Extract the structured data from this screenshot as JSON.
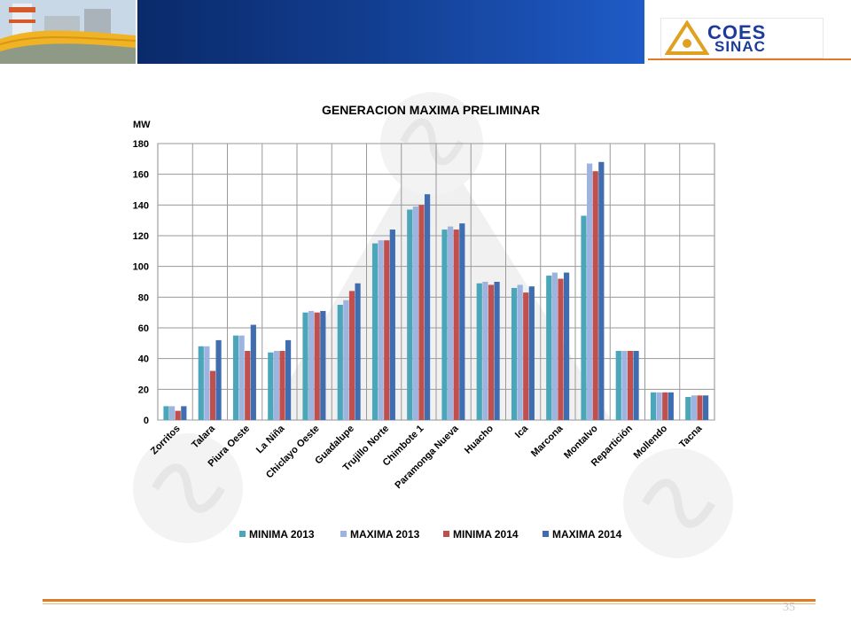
{
  "header": {
    "logo_line1": "COES",
    "logo_line2": "SINAC"
  },
  "colors": {
    "header_blue": "#123d8f",
    "accent_orange": "#e07b25",
    "series": [
      "#4aa6b8",
      "#9db4e0",
      "#c0504d",
      "#3f6db0"
    ]
  },
  "chart_data": {
    "type": "bar",
    "title": "GENERACION MAXIMA PRELIMINAR",
    "ylabel": "MW",
    "xlabel": "",
    "ylim": [
      0,
      180
    ],
    "yticks": [
      0,
      20,
      40,
      60,
      80,
      100,
      120,
      140,
      160,
      180
    ],
    "grid": true,
    "legend_position": "bottom",
    "categories": [
      "Zorritos",
      "Talara",
      "Piura Oeste",
      "La Niña",
      "Chiclayo Oeste",
      "Guadalupe",
      "Trujillo Norte",
      "Chimbote 1",
      "Paramonga Nueva",
      "Huacho",
      "Ica",
      "Marcona",
      "Montalvo",
      "Repartición",
      "Mollendo",
      "Tacna"
    ],
    "series": [
      {
        "name": "MINIMA 2013",
        "color": "#4aa6b8",
        "values": [
          9,
          48,
          55,
          44,
          70,
          75,
          115,
          137,
          124,
          89,
          86,
          94,
          133,
          45,
          18,
          15
        ]
      },
      {
        "name": "MAXIMA 2013",
        "color": "#9db4e0",
        "values": [
          9,
          48,
          55,
          45,
          71,
          78,
          117,
          139,
          126,
          90,
          88,
          96,
          167,
          45,
          18,
          16
        ]
      },
      {
        "name": "MINIMA 2014",
        "color": "#c0504d",
        "values": [
          6,
          32,
          45,
          45,
          70,
          84,
          117,
          140,
          124,
          88,
          83,
          92,
          162,
          45,
          18,
          16
        ]
      },
      {
        "name": "MAXIMA 2014",
        "color": "#3f6db0",
        "values": [
          9,
          52,
          62,
          52,
          71,
          89,
          124,
          147,
          128,
          90,
          87,
          96,
          168,
          45,
          18,
          16
        ]
      }
    ]
  },
  "footer": {
    "page_number": "35"
  }
}
